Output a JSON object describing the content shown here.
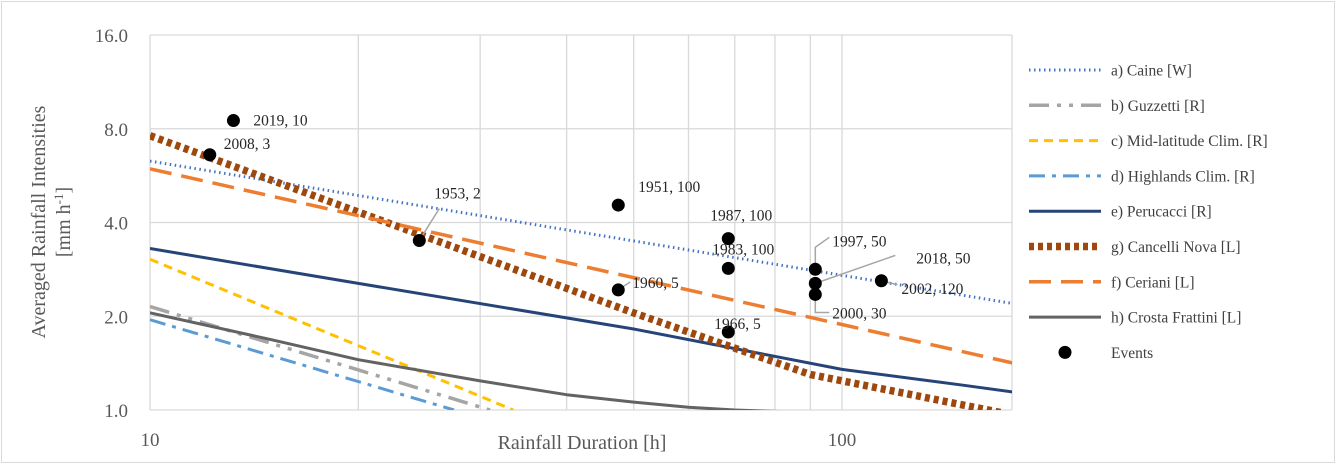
{
  "chart_data": {
    "type": "line",
    "title": "",
    "xlabel": "Rainfall Duration [h]",
    "ylabel_line1": "Averaged Rainfall Intensities",
    "ylabel_line2_main": "[mm h",
    "ylabel_line2_sup": "-1",
    "ylabel_line2_end": "]",
    "x_scale": "log",
    "y_scale": "log2",
    "xlim": [
      10,
      250
    ],
    "ylim": [
      1.0,
      16.0
    ],
    "x_ticks": [
      {
        "value": 10,
        "label": "10"
      },
      {
        "value": 100,
        "label": "100"
      }
    ],
    "y_ticks": [
      {
        "value": 1.0,
        "label": "1.0"
      },
      {
        "value": 2.0,
        "label": "2.0"
      },
      {
        "value": 4.0,
        "label": "4.0"
      },
      {
        "value": 8.0,
        "label": "8.0"
      },
      {
        "value": 16.0,
        "label": "16.0"
      }
    ],
    "grid": true,
    "legend_position": "right",
    "series": [
      {
        "name": "a) Caine [W]",
        "color": "#4472c4",
        "dash": "dotted",
        "x": [
          10,
          200
        ],
        "y": [
          6.3,
          2.1
        ]
      },
      {
        "name": "b) Guzzetti [R]",
        "color": "#a5a5a5",
        "dash": "longdashdotdot",
        "x": [
          10,
          31
        ],
        "y": [
          2.15,
          1.0
        ]
      },
      {
        "name": "c) Mid-latitude Clim. [R]",
        "color": "#ffc000",
        "dash": "dashed",
        "x": [
          10,
          33.5
        ],
        "y": [
          3.05,
          1.0
        ]
      },
      {
        "name": "d) Highlands Clim. [R]",
        "color": "#5b9bd5",
        "dash": "dashdot",
        "x": [
          10,
          27.5
        ],
        "y": [
          1.95,
          1.0
        ]
      },
      {
        "name": "e) Perucacci [R]",
        "color": "#264478",
        "dash": "solid",
        "x": [
          10,
          20,
          50,
          100,
          150,
          200
        ],
        "y": [
          3.3,
          2.55,
          1.82,
          1.35,
          1.2,
          1.1
        ]
      },
      {
        "name": "g) Cancelli Nova [L]",
        "color": "#9e480e",
        "dash": "dotted-heavy",
        "x": [
          10,
          50,
          90,
          170
        ],
        "y": [
          7.6,
          2.05,
          1.3,
          0.98
        ]
      },
      {
        "name": "f) Ceriani [L]",
        "color": "#ed7d31",
        "dash": "longdash",
        "x": [
          10,
          200
        ],
        "y": [
          5.95,
          1.33
        ]
      },
      {
        "name": "h) Crosta Frattini [L]",
        "color": "#636363",
        "dash": "solid",
        "x": [
          10,
          15,
          20,
          30,
          40,
          50,
          60,
          70,
          80,
          90
        ],
        "y": [
          2.05,
          1.68,
          1.45,
          1.24,
          1.12,
          1.06,
          1.02,
          1.0,
          0.99,
          0.985
        ]
      }
    ],
    "events": {
      "name": "Events",
      "color": "#000000",
      "points": [
        {
          "x": 13.2,
          "y": 8.5,
          "label": "2019, 10"
        },
        {
          "x": 12.2,
          "y": 6.6,
          "label": "2008, 3"
        },
        {
          "x": 24.5,
          "y": 3.5,
          "label": "1953, 2"
        },
        {
          "x": 47.5,
          "y": 4.55,
          "label": "1951, 100"
        },
        {
          "x": 47.5,
          "y": 2.43,
          "label": "1960, 5"
        },
        {
          "x": 68.5,
          "y": 3.55,
          "label": "1987, 100"
        },
        {
          "x": 68.5,
          "y": 2.85,
          "label": "1983, 100"
        },
        {
          "x": 68.5,
          "y": 1.78,
          "label": "1966, 5"
        },
        {
          "x": 91.5,
          "y": 2.83,
          "label": "1997, 50"
        },
        {
          "x": 91.5,
          "y": 2.55,
          "label": "2018, 50"
        },
        {
          "x": 91.5,
          "y": 2.35,
          "label": "2000, 30"
        },
        {
          "x": 114,
          "y": 2.6,
          "label": "2002, 120"
        }
      ]
    }
  }
}
